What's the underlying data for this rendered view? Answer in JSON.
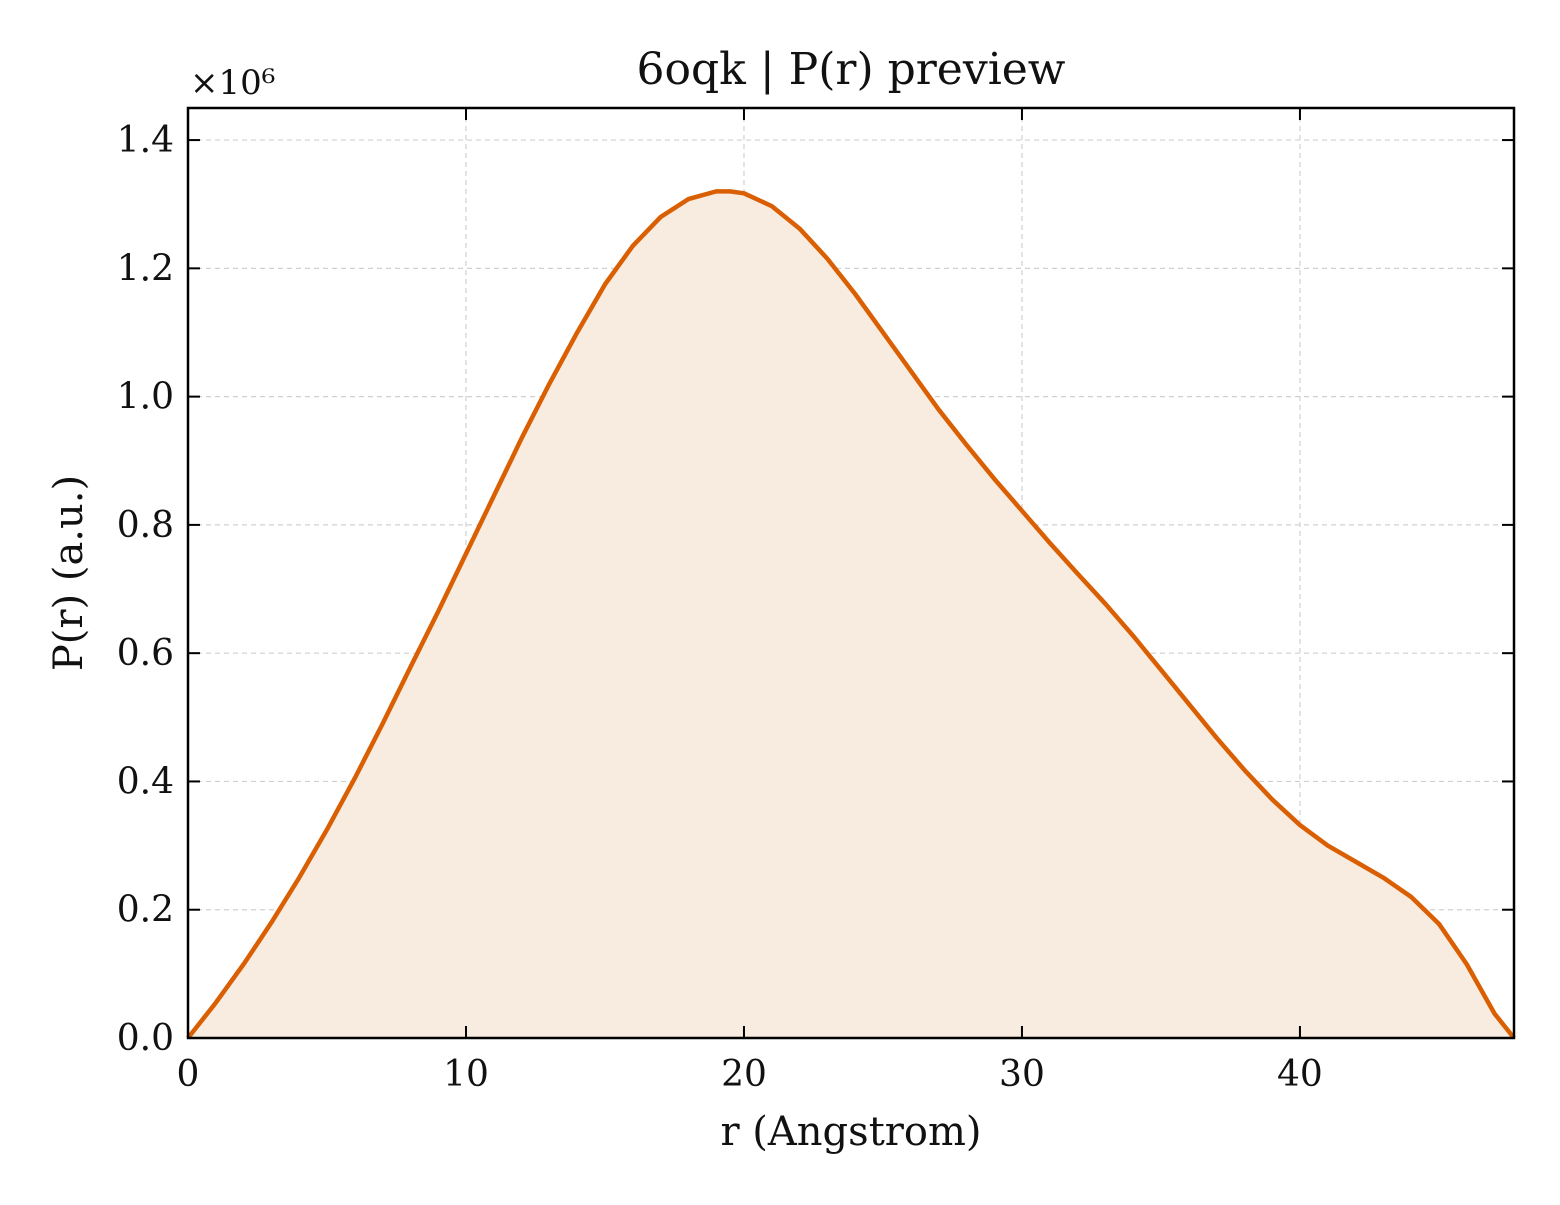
{
  "chart_data": {
    "type": "area",
    "title": "6oqk | P(r) preview",
    "xlabel": "r (Angstrom)",
    "ylabel": "P(r) (a.u.)",
    "y_multiplier": "×10⁶",
    "xlim": [
      0,
      47.7
    ],
    "ylim": [
      0,
      1.45
    ],
    "xticks": [
      0,
      10,
      20,
      30,
      40
    ],
    "yticks": [
      0.0,
      0.2,
      0.4,
      0.6,
      0.8,
      1.0,
      1.2,
      1.4
    ],
    "xtick_labels": [
      "0",
      "10",
      "20",
      "30",
      "40"
    ],
    "ytick_labels": [
      "0.0",
      "0.2",
      "0.4",
      "0.6",
      "0.8",
      "1.0",
      "1.2",
      "1.4"
    ],
    "grid": true,
    "colors": {
      "line": "#d95f02",
      "fill": "#f8ebe0",
      "grid": "#d0d0d0"
    },
    "series": [
      {
        "x": [
          0,
          1,
          2,
          3,
          4,
          5,
          6,
          7,
          8,
          9,
          10,
          11,
          12,
          13,
          14,
          15,
          16,
          17,
          18,
          19,
          19.5,
          20,
          21,
          22,
          23,
          24,
          25,
          26,
          27,
          28,
          29,
          30,
          31,
          32,
          33,
          34,
          35,
          36,
          37,
          38,
          39,
          40,
          41,
          42,
          43,
          44,
          45,
          46,
          47,
          47.7
        ],
        "values": [
          0.0,
          0.055,
          0.115,
          0.18,
          0.25,
          0.325,
          0.405,
          0.49,
          0.578,
          0.665,
          0.755,
          0.845,
          0.935,
          1.02,
          1.1,
          1.175,
          1.235,
          1.28,
          1.308,
          1.32,
          1.32,
          1.317,
          1.297,
          1.262,
          1.215,
          1.16,
          1.1,
          1.04,
          0.98,
          0.925,
          0.872,
          0.822,
          0.772,
          0.724,
          0.677,
          0.627,
          0.574,
          0.521,
          0.468,
          0.418,
          0.372,
          0.332,
          0.3,
          0.275,
          0.25,
          0.22,
          0.178,
          0.115,
          0.038,
          0.0
        ]
      }
    ]
  }
}
